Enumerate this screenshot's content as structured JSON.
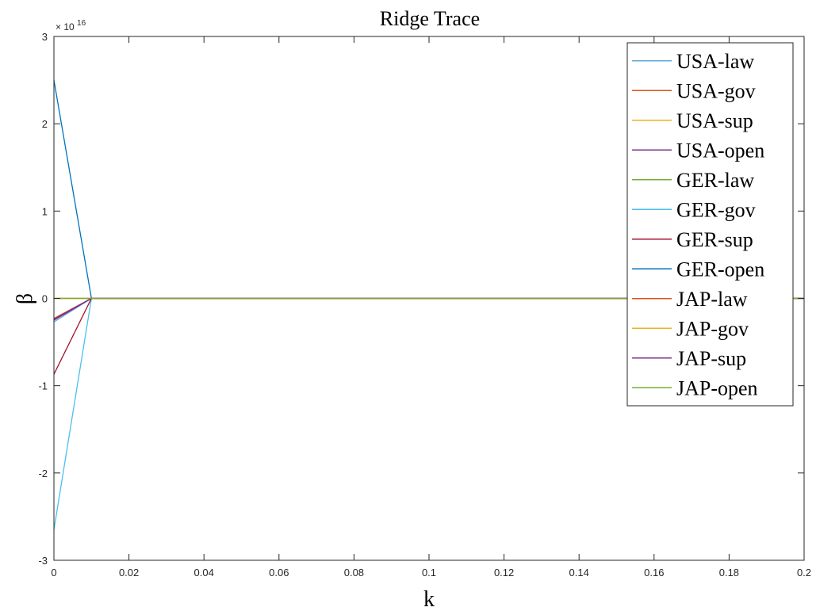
{
  "chart_data": {
    "type": "line",
    "title": "Ridge Trace",
    "xlabel": "k",
    "ylabel": "β",
    "y_exponent_prefix": "× 10",
    "y_exponent_power": "16",
    "xlim": [
      0,
      0.2
    ],
    "ylim": [
      -3,
      3
    ],
    "x_ticks": [
      0,
      0.02,
      0.04,
      0.06,
      0.08,
      0.1,
      0.12,
      0.14,
      0.16,
      0.18,
      0.2
    ],
    "x_tick_labels": [
      "0",
      "0.02",
      "0.04",
      "0.06",
      "0.08",
      "0.1",
      "0.12",
      "0.14",
      "0.16",
      "0.18",
      "0.2"
    ],
    "y_ticks": [
      -3,
      -2,
      -1,
      0,
      1,
      2,
      3
    ],
    "y_tick_labels": [
      "-3",
      "-2",
      "-1",
      "0",
      "1",
      "2",
      "3"
    ],
    "grid": false,
    "legend_position": "top-right",
    "x": [
      0,
      0.01,
      0.2
    ],
    "series": [
      {
        "name": "USA-law",
        "color": "#5DA9DE",
        "values": [
          -0.27,
          0,
          0
        ]
      },
      {
        "name": "USA-gov",
        "color": "#D95319",
        "values": [
          -0.23,
          0,
          0
        ]
      },
      {
        "name": "USA-sup",
        "color": "#EDB120",
        "values": [
          0.0,
          0,
          0
        ]
      },
      {
        "name": "USA-open",
        "color": "#7E2F8E",
        "values": [
          -0.25,
          0,
          0
        ]
      },
      {
        "name": "GER-law",
        "color": "#77AC30",
        "values": [
          0.0,
          0,
          0
        ]
      },
      {
        "name": "GER-gov",
        "color": "#4DBEEE",
        "values": [
          -2.65,
          0,
          0
        ]
      },
      {
        "name": "GER-sup",
        "color": "#A2142F",
        "values": [
          -0.87,
          0,
          0
        ]
      },
      {
        "name": "GER-open",
        "color": "#0072BD",
        "values": [
          2.5,
          0,
          0
        ]
      },
      {
        "name": "JAP-law",
        "color": "#D95319",
        "values": [
          0.0,
          0,
          0
        ]
      },
      {
        "name": "JAP-gov",
        "color": "#EDB120",
        "values": [
          0.0,
          0,
          0
        ]
      },
      {
        "name": "JAP-sup",
        "color": "#7E2F8E",
        "values": [
          -0.24,
          0,
          0
        ]
      },
      {
        "name": "JAP-open",
        "color": "#77AC30",
        "values": [
          0.0,
          0,
          0
        ]
      }
    ]
  }
}
